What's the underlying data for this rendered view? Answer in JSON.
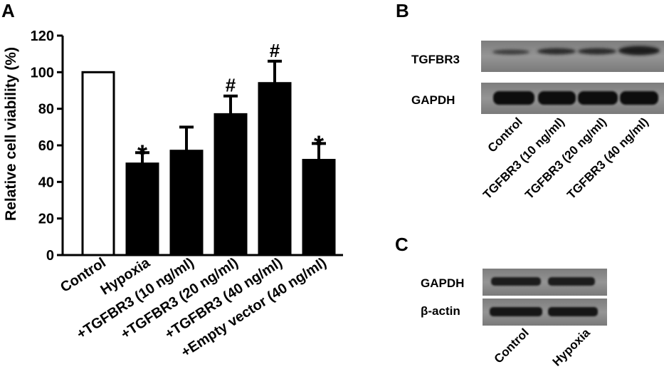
{
  "panels": {
    "A": {
      "letter": "A",
      "chart_data": {
        "type": "bar",
        "title": "",
        "xlabel": "",
        "ylabel": "Relative cell viability (%)",
        "ylim": [
          0,
          120
        ],
        "yticks": [
          0,
          20,
          40,
          60,
          80,
          100,
          120
        ],
        "categories": [
          "Control",
          "Hypoxia",
          "+TGFBR3 (10 ng/ml)",
          "+TGFBR3 (20 ng/ml)",
          "+TGFBR3 (40 ng/ml)",
          "+Empty vector (40 ng/ml)"
        ],
        "values": [
          100,
          50,
          57,
          77,
          94,
          52
        ],
        "errors": [
          0,
          6,
          13,
          10,
          12,
          9
        ],
        "fills": [
          "#ffffff",
          "#000000",
          "#000000",
          "#000000",
          "#000000",
          "#000000"
        ],
        "annotations": [
          "",
          "*",
          "",
          "#",
          "#",
          "*"
        ],
        "grid": false,
        "legend": "none"
      }
    },
    "B": {
      "letter": "B",
      "rows": [
        "TGFBR3",
        "GAPDH"
      ],
      "lanes": [
        "Control",
        "TGFBR3 (10 ng/ml)",
        "TGFBR3 (20 ng/ml)",
        "TGFBR3 (40 ng/ml)"
      ]
    },
    "C": {
      "letter": "C",
      "rows": [
        "GAPDH",
        "β-actin"
      ],
      "lanes": [
        "Control",
        "Hypoxia"
      ]
    }
  },
  "colors": {
    "bar_fill": "#000000",
    "control_bar_fill": "#ffffff",
    "blot_background": "#8a8a8a",
    "band": "#141414"
  }
}
